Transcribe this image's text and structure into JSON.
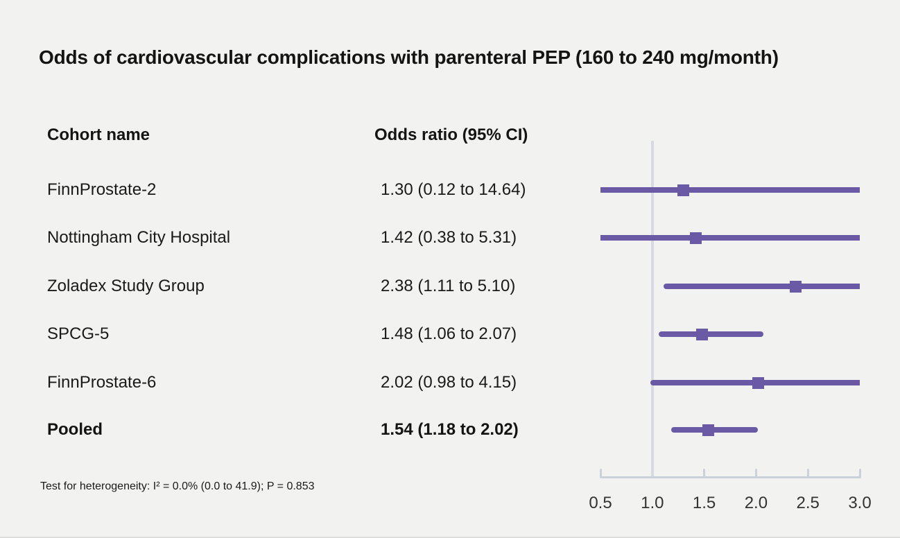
{
  "columns": {
    "cohort": "Cohort name",
    "odds_ratio": "Odds ratio (95% CI)"
  },
  "colors": {
    "background": "#f2f2f0",
    "ci_line": "#6a5aa6",
    "marker": "#6a5aa6",
    "reference_line": "#d6dae1",
    "axis": "#ccd1d9",
    "title_text": "#141414",
    "tick_text": "#333333"
  },
  "chart_data": {
    "type": "forest",
    "title": "Odds of cardiovascular complications with parenteral PEP (160 to 240 mg/month)",
    "xlabel": "",
    "ylabel": "",
    "xlim": [
      0.5,
      3.0
    ],
    "x_ticks": [
      0.5,
      1.0,
      1.5,
      2.0,
      2.5,
      3.0
    ],
    "x_tick_labels": [
      "0.5",
      "1.0",
      "1.5",
      "2.0",
      "2.5",
      "3.0"
    ],
    "reference_value": 1.0,
    "rows": [
      {
        "label": "FinnProstate-2",
        "or": 1.3,
        "ci_low": 0.12,
        "ci_high": 14.64,
        "or_text": "1.30 (0.12 to 14.64)",
        "bold": false
      },
      {
        "label": "Nottingham City Hospital",
        "or": 1.42,
        "ci_low": 0.38,
        "ci_high": 5.31,
        "or_text": "1.42 (0.38 to 5.31)",
        "bold": false
      },
      {
        "label": "Zoladex Study Group",
        "or": 2.38,
        "ci_low": 1.11,
        "ci_high": 5.1,
        "or_text": "2.38 (1.11 to 5.10)",
        "bold": false
      },
      {
        "label": "SPCG-5",
        "or": 1.48,
        "ci_low": 1.06,
        "ci_high": 2.07,
        "or_text": "1.48 (1.06 to 2.07)",
        "bold": false
      },
      {
        "label": "FinnProstate-6",
        "or": 2.02,
        "ci_low": 0.98,
        "ci_high": 4.15,
        "or_text": "2.02 (0.98 to 4.15)",
        "bold": false
      },
      {
        "label": "Pooled",
        "or": 1.54,
        "ci_low": 1.18,
        "ci_high": 2.02,
        "or_text": "1.54 (1.18 to 2.02)",
        "bold": true
      }
    ],
    "heterogeneity": "Test for heterogeneity: I² = 0.0% (0.0 to 41.9); P = 0.853"
  }
}
